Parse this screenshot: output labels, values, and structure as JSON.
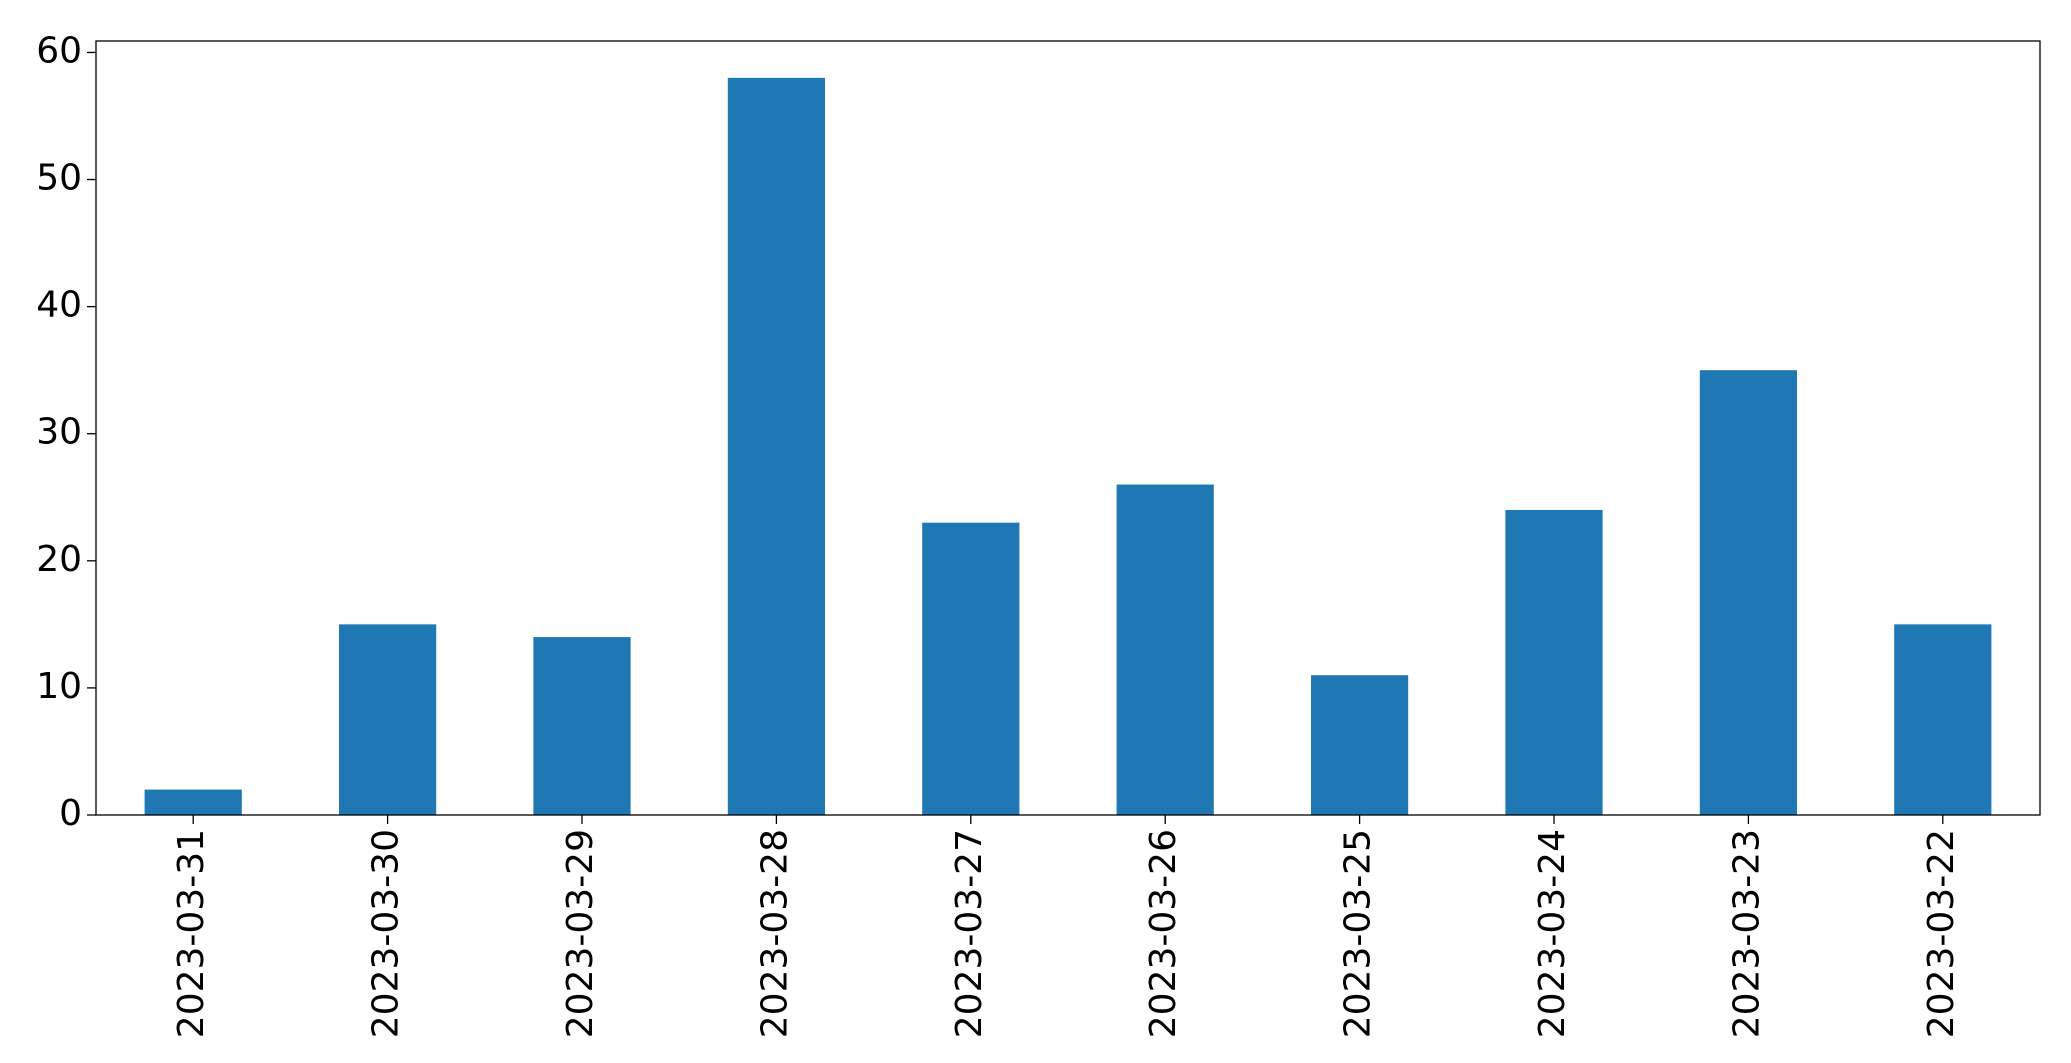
{
  "chart_data": {
    "type": "bar",
    "categories": [
      "2023-03-31",
      "2023-03-30",
      "2023-03-29",
      "2023-03-28",
      "2023-03-27",
      "2023-03-26",
      "2023-03-25",
      "2023-03-24",
      "2023-03-23",
      "2023-03-22"
    ],
    "values": [
      2,
      15,
      14,
      58,
      23,
      26,
      11,
      24,
      35,
      15
    ],
    "color": "#1f77b4",
    "ylim": [
      0,
      60.9
    ],
    "yticks": [
      0,
      10,
      20,
      30,
      40,
      50,
      60
    ],
    "grid": false
  }
}
